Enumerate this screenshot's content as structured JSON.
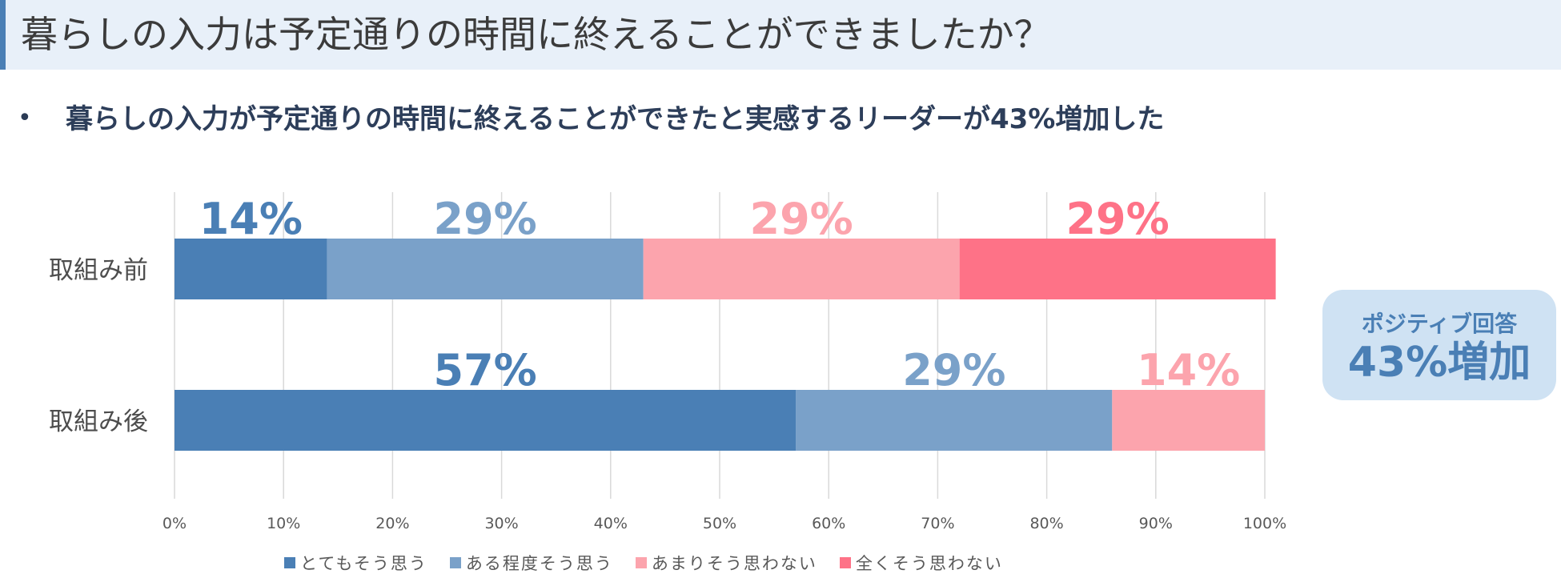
{
  "header": {
    "title": "暮らしの入力は予定通りの時間に終えることができましたか？"
  },
  "summary": {
    "bullet": "•",
    "text": "暮らしの入力が予定通りの時間に終えることができたと実感するリーダーが43%増加した"
  },
  "callout": {
    "line1": "ポジティブ回答",
    "line2": "43%増加"
  },
  "chart_data": {
    "type": "bar",
    "orientation": "horizontal",
    "stacked": true,
    "categories": [
      "取組み前",
      "取組み後"
    ],
    "series": [
      {
        "name": "とてもそう思う",
        "values": [
          14,
          57
        ],
        "labels": [
          "14%",
          "57%"
        ],
        "color": "#4a7fb5"
      },
      {
        "name": "ある程度そう思う",
        "values": [
          29,
          29
        ],
        "labels": [
          "29%",
          "29%"
        ],
        "color": "#7aa1c9"
      },
      {
        "name": "あまりそう思わない",
        "values": [
          29,
          14
        ],
        "labels": [
          "29%",
          "14%"
        ],
        "color": "#fca4ad"
      },
      {
        "name": "全くそう思わない",
        "values": [
          29,
          0
        ],
        "labels": [
          "29%",
          ""
        ],
        "color": "#fe7287"
      }
    ],
    "xlim": [
      0,
      100
    ],
    "xticks": [
      "0%",
      "10%",
      "20%",
      "30%",
      "40%",
      "50%",
      "60%",
      "70%",
      "80%",
      "90%",
      "100%"
    ],
    "grid": true,
    "legend_position": "bottom"
  }
}
